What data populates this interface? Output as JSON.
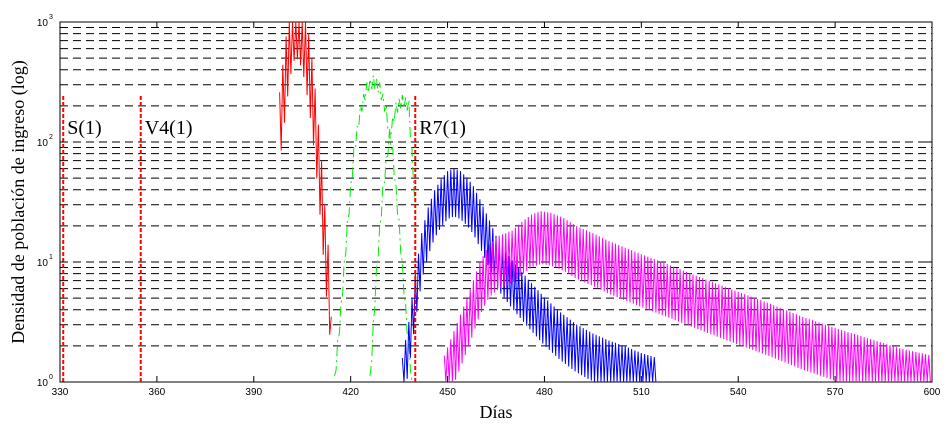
{
  "chart_data": {
    "type": "line",
    "xlabel": "Días",
    "ylabel": "Densidad de población de ingreso (log)",
    "xlim": [
      330,
      600
    ],
    "ylim": [
      1,
      1000
    ],
    "yscale": "log",
    "xticks": [
      330,
      360,
      390,
      420,
      450,
      480,
      510,
      540,
      570,
      600
    ],
    "yticks": [
      {
        "base": "10",
        "exp": "0",
        "value": 1
      },
      {
        "base": "10",
        "exp": "1",
        "value": 10
      },
      {
        "base": "10",
        "exp": "2",
        "value": 100
      },
      {
        "base": "10",
        "exp": "3",
        "value": 1000
      }
    ],
    "grid": "y-minor-dashed",
    "vlines": [
      {
        "label": "S(1)",
        "x": 331,
        "top": 250
      },
      {
        "label": "V4(1)",
        "x": 355,
        "top": 250
      },
      {
        "label": "R7(1)",
        "x": 440,
        "top": 250
      }
    ],
    "series": [
      {
        "color": "#ff0000",
        "style": "solid",
        "x": [
          398,
          399,
          400,
          401,
          402,
          403,
          404,
          405,
          406,
          407,
          408,
          409,
          410,
          411,
          412,
          413,
          414
        ],
        "y": [
          130,
          220,
          380,
          600,
          900,
          1000,
          950,
          800,
          600,
          400,
          250,
          140,
          70,
          35,
          15,
          7,
          3.5
        ],
        "spread": 0.3
      },
      {
        "color": "#00ee00",
        "style": "dashdot",
        "x": [
          415,
          417,
          419,
          421,
          423,
          425,
          427,
          429,
          431,
          433,
          435,
          437,
          439
        ],
        "y": [
          1,
          4,
          20,
          80,
          180,
          280,
          320,
          280,
          180,
          80,
          20,
          4,
          1
        ],
        "spread": 0.05
      },
      {
        "color": "#00ee00",
        "style": "dashdot",
        "x": [
          426,
          428,
          430,
          432,
          434,
          436,
          438,
          440
        ],
        "y": [
          1,
          8,
          40,
          110,
          190,
          220,
          200,
          30
        ],
        "spread": 0.05
      },
      {
        "color": "#0000ff",
        "style": "solid",
        "x": [
          436,
          438,
          440,
          442,
          444,
          446,
          448,
          450,
          452,
          454,
          456,
          458,
          460,
          463,
          466,
          470,
          475,
          480,
          485,
          490,
          495,
          500,
          505,
          510,
          515
        ],
        "y": [
          1,
          2,
          5,
          11,
          18,
          25,
          31,
          36,
          38,
          36,
          32,
          27,
          21,
          14,
          9,
          6.5,
          4.5,
          3.2,
          2.4,
          1.9,
          1.6,
          1.4,
          1.25,
          1.1,
          1
        ],
        "spread": 0.2
      },
      {
        "color": "#ff00ff",
        "style": "solid",
        "x": [
          449,
          452,
          456,
          460,
          463,
          466,
          468,
          470,
          473,
          476,
          479,
          482,
          486,
          490,
          495,
          500,
          510,
          520,
          530,
          540,
          550,
          560,
          570,
          580,
          590,
          600
        ],
        "y": [
          1,
          1.6,
          3,
          6,
          8.5,
          10,
          10.5,
          11,
          13,
          15,
          16,
          15.5,
          14,
          12,
          10.5,
          9,
          7,
          5.5,
          4.3,
          3.4,
          2.7,
          2.1,
          1.7,
          1.4,
          1.15,
          1
        ],
        "spread": 0.22
      }
    ]
  }
}
